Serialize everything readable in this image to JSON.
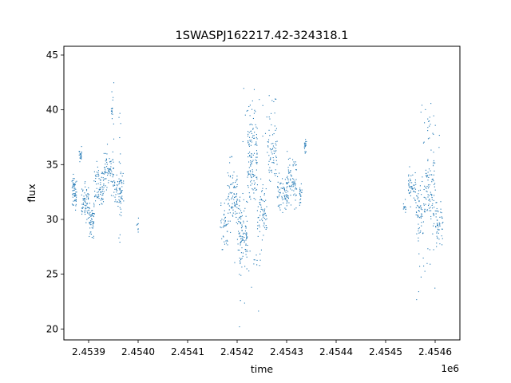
{
  "chart_data": {
    "type": "scatter",
    "title": "1SWASPJ162217.42-324318.1",
    "xlabel": "time",
    "ylabel": "flux",
    "x_offset_label": "1e6",
    "xlim": [
      2.45385,
      2.45465
    ],
    "ylim": [
      19.0,
      45.8
    ],
    "x_ticks": [
      2.4539,
      2.454,
      2.4541,
      2.4542,
      2.4543,
      2.4544,
      2.4545,
      2.4546
    ],
    "x_tick_labels": [
      "2.4539",
      "2.4540",
      "2.4541",
      "2.4542",
      "2.4543",
      "2.4544",
      "2.4545",
      "2.4546"
    ],
    "y_ticks": [
      20,
      25,
      30,
      35,
      40,
      45
    ],
    "y_tick_labels": [
      "20",
      "25",
      "30",
      "35",
      "40",
      "45"
    ],
    "grid": false,
    "marker_color": "#1f77b4",
    "clusters": [
      {
        "x_range": [
          2.453865,
          2.453875
        ],
        "y_center": 32.5,
        "spread": 1.2,
        "n": 60
      },
      {
        "x_range": [
          2.45388,
          2.453885
        ],
        "y_center": 36.0,
        "spread": 0.5,
        "n": 25
      },
      {
        "x_range": [
          2.453885,
          2.4539
        ],
        "y_center": 31.5,
        "spread": 1.4,
        "n": 70
      },
      {
        "x_range": [
          2.4539,
          2.45391
        ],
        "y_center": 30.0,
        "spread": 1.2,
        "n": 50
      },
      {
        "x_range": [
          2.45391,
          2.45393
        ],
        "y_center": 33.0,
        "spread": 1.8,
        "n": 80
      },
      {
        "x_range": [
          2.45393,
          2.45395
        ],
        "y_center": 34.5,
        "spread": 1.5,
        "n": 70
      },
      {
        "x_range": [
          2.45395,
          2.45397
        ],
        "y_center": 32.8,
        "spread": 1.3,
        "n": 60
      },
      {
        "x_range": [
          2.453945,
          2.45395
        ],
        "y_center": 39.0,
        "spread": 3.5,
        "n": 20
      },
      {
        "x_range": [
          2.45396,
          2.453965
        ],
        "y_center": 33.0,
        "spread": 5.0,
        "n": 25
      },
      {
        "x_range": [
          2.453995,
          2.454
        ],
        "y_center": 29.5,
        "spread": 0.8,
        "n": 8
      },
      {
        "x_range": [
          2.454165,
          2.45418
        ],
        "y_center": 29.0,
        "spread": 2.0,
        "n": 40
      },
      {
        "x_range": [
          2.45418,
          2.4542
        ],
        "y_center": 32.0,
        "spread": 2.5,
        "n": 90
      },
      {
        "x_range": [
          2.4542,
          2.45422
        ],
        "y_center": 29.0,
        "spread": 2.3,
        "n": 100
      },
      {
        "x_range": [
          2.45422,
          2.45424
        ],
        "y_center": 35.5,
        "spread": 3.0,
        "n": 120
      },
      {
        "x_range": [
          2.45424,
          2.45426
        ],
        "y_center": 31.0,
        "spread": 2.0,
        "n": 70
      },
      {
        "x_range": [
          2.45426,
          2.45428
        ],
        "y_center": 36.0,
        "spread": 2.5,
        "n": 60
      },
      {
        "x_range": [
          2.45428,
          2.4543
        ],
        "y_center": 32.5,
        "spread": 1.5,
        "n": 70
      },
      {
        "x_range": [
          2.4543,
          2.45432
        ],
        "y_center": 33.5,
        "spread": 2.0,
        "n": 80
      },
      {
        "x_range": [
          2.454325,
          2.45433
        ],
        "y_center": 32.5,
        "spread": 1.0,
        "n": 20
      },
      {
        "x_range": [
          2.454335,
          2.45434
        ],
        "y_center": 36.7,
        "spread": 0.5,
        "n": 20
      },
      {
        "x_range": [
          2.45419,
          2.45425
        ],
        "y_center": 25.0,
        "spread": 3.0,
        "n": 30
      },
      {
        "x_range": [
          2.45421,
          2.45428
        ],
        "y_center": 40.0,
        "spread": 2.0,
        "n": 30
      },
      {
        "x_range": [
          2.454535,
          2.45454
        ],
        "y_center": 31.2,
        "spread": 0.4,
        "n": 12
      },
      {
        "x_range": [
          2.454545,
          2.45456
        ],
        "y_center": 33.0,
        "spread": 1.2,
        "n": 50
      },
      {
        "x_range": [
          2.45456,
          2.45458
        ],
        "y_center": 31.0,
        "spread": 2.0,
        "n": 70
      },
      {
        "x_range": [
          2.45458,
          2.4546
        ],
        "y_center": 33.0,
        "spread": 2.5,
        "n": 80
      },
      {
        "x_range": [
          2.4546,
          2.454615
        ],
        "y_center": 29.5,
        "spread": 1.8,
        "n": 50
      },
      {
        "x_range": [
          2.45457,
          2.45461
        ],
        "y_center": 38.0,
        "spread": 3.0,
        "n": 25
      },
      {
        "x_range": [
          2.45456,
          2.4546
        ],
        "y_center": 25.0,
        "spread": 2.5,
        "n": 15
      }
    ]
  }
}
